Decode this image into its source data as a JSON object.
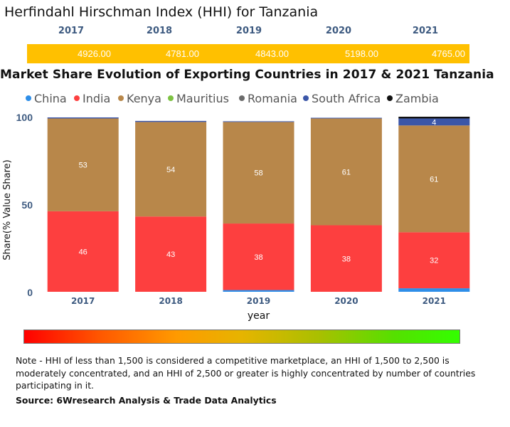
{
  "hhi": {
    "title": "Herfindahl Hirschman Index (HHI) for Tanzania",
    "years": [
      "2017",
      "2018",
      "2019",
      "2020",
      "2021"
    ],
    "values": [
      "4926.00",
      "4781.00",
      "4843.00",
      "5198.00",
      "4765.00"
    ],
    "band_color": "#ffc000"
  },
  "market_title": "Market Share Evolution of Exporting Countries in 2017 & 2021 Tanzania",
  "chart_data": {
    "type": "bar",
    "stacked": true,
    "title": "Market Share Evolution of Exporting Countries in 2017 & 2021 Tanzania",
    "categories": [
      "2017",
      "2018",
      "2019",
      "2020",
      "2021"
    ],
    "xlabel": "year",
    "ylabel": "Share(% Value Share)",
    "ylim": [
      0,
      100
    ],
    "yticks": [
      0,
      50,
      100
    ],
    "legend_position": "top",
    "series": [
      {
        "name": "China",
        "color": "#2e8ee8",
        "values": [
          0,
          0,
          1,
          0,
          2
        ]
      },
      {
        "name": "India",
        "color": "#fd3f3f",
        "values": [
          46,
          43,
          38,
          38,
          32
        ]
      },
      {
        "name": "Kenya",
        "color": "#b8874a",
        "values": [
          53,
          54,
          58,
          61,
          61
        ]
      },
      {
        "name": "Mauritius",
        "color": "#7dc242",
        "values": [
          0,
          0,
          0,
          0,
          0
        ]
      },
      {
        "name": "Romania",
        "color": "#6b6b6b",
        "values": [
          0,
          0,
          0,
          0,
          0
        ]
      },
      {
        "name": "South Africa",
        "color": "#3b56a8",
        "values": [
          0.6,
          0.6,
          0.4,
          0.4,
          4
        ]
      },
      {
        "name": "Zambia",
        "color": "#111111",
        "values": [
          0,
          0,
          0,
          0,
          1
        ]
      }
    ],
    "labels": {
      "India": [
        "46",
        "43",
        "38",
        "38",
        "32"
      ],
      "Kenya": [
        "53",
        "54",
        "58",
        "61",
        "61"
      ],
      "South Africa": [
        "",
        "",
        "",
        "",
        "4"
      ]
    }
  },
  "note": "Note - HHI of less than 1,500 is considered a competitive marketplace, an HHI of 1,500 to 2,500 is moderately concentrated, and an HHI of 2,500 or greater is highly concentrated by number of countries participating in it.",
  "source": "Source: 6Wresearch Analysis & Trade Data Analytics"
}
